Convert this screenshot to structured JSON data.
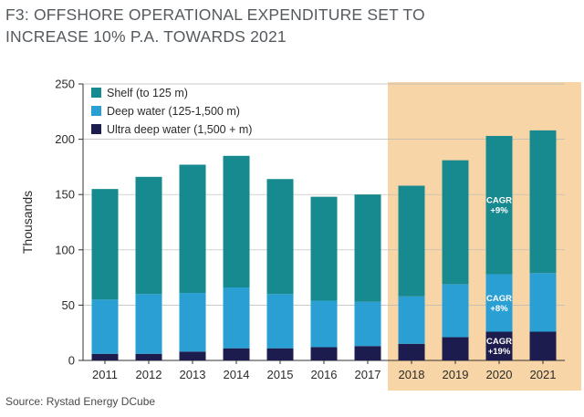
{
  "header": {
    "title_line1": "F3:  OFFSHORE OPERATIONAL EXPENDITURE SET TO",
    "title_line2": "INCREASE 10% P.A. TOWARDS 2021"
  },
  "footer": {
    "source": "Source: Rystad Energy DCube"
  },
  "colors": {
    "shelf": "#178a8f",
    "deep": "#2a9fd3",
    "ultra": "#1c1d4e",
    "forecast_band": "#f8d5a6"
  },
  "chart_data": {
    "type": "bar",
    "stacked": true,
    "title": "F3:  OFFSHORE OPERATIONAL EXPENDITURE SET TO INCREASE 10% P.A. TOWARDS 2021",
    "xlabel": "",
    "ylabel": "Thousands",
    "ylim": [
      0,
      250
    ],
    "yticks": [
      0,
      50,
      100,
      150,
      200,
      250
    ],
    "categories": [
      "2011",
      "2012",
      "2013",
      "2014",
      "2015",
      "2016",
      "2017",
      "2018",
      "2019",
      "2020",
      "2021"
    ],
    "forecast_from": "2018",
    "legend_position": "top-left",
    "series": [
      {
        "name": "Ultra deep water (1,500 + m)",
        "color": "#1c1d4e",
        "values": [
          6,
          6,
          8,
          11,
          11,
          12,
          13,
          15,
          21,
          26,
          26
        ]
      },
      {
        "name": "Deep water (125-1,500 m)",
        "color": "#2a9fd3",
        "values": [
          49,
          54,
          53,
          55,
          49,
          42,
          40,
          43,
          48,
          52,
          53
        ]
      },
      {
        "name": "Shelf (to 125 m)",
        "color": "#178a8f",
        "values": [
          100,
          106,
          116,
          119,
          104,
          94,
          97,
          100,
          112,
          125,
          129
        ]
      }
    ],
    "legend_order": [
      "Shelf (to 125 m)",
      "Deep water (125-1,500 m)",
      "Ultra deep water (1,500 + m)"
    ],
    "annotations": [
      {
        "category": "2020",
        "series": "Shelf (to 125 m)",
        "lines": [
          "CAGR",
          "+9%"
        ]
      },
      {
        "category": "2020",
        "series": "Deep water (125-1,500 m)",
        "lines": [
          "CAGR",
          "+8%"
        ]
      },
      {
        "category": "2020",
        "series": "Ultra deep water (1,500 + m)",
        "lines": [
          "CAGR",
          "+19%"
        ]
      }
    ]
  }
}
